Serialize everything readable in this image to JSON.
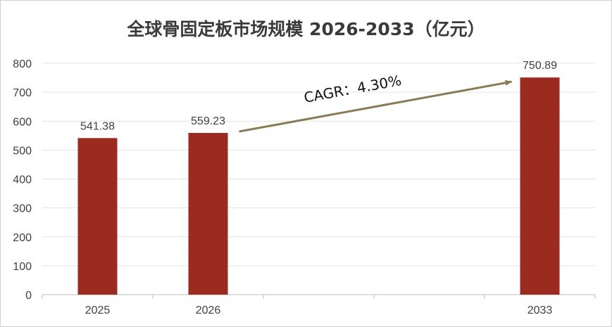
{
  "chart_data": {
    "type": "bar",
    "title": "全球骨固定板市场规模 2026-2033（亿元）",
    "xlabel": "",
    "ylabel": "",
    "categories": [
      "2025",
      "2026",
      "",
      "",
      "2033"
    ],
    "values": [
      541.38,
      559.23,
      null,
      null,
      750.89
    ],
    "data_labels": [
      "541.38",
      "559.23",
      "",
      "",
      "750.89"
    ],
    "ylim": [
      0,
      800
    ],
    "yticks": [
      0,
      100,
      200,
      300,
      400,
      500,
      600,
      700,
      800
    ],
    "grid": true,
    "legend": "none",
    "bar_color": "#9b2a1f",
    "annotation": {
      "text": "CAGR：4.30%",
      "arrow_color": "#8b7a55",
      "from_category": "2026",
      "to_category": "2033"
    }
  }
}
